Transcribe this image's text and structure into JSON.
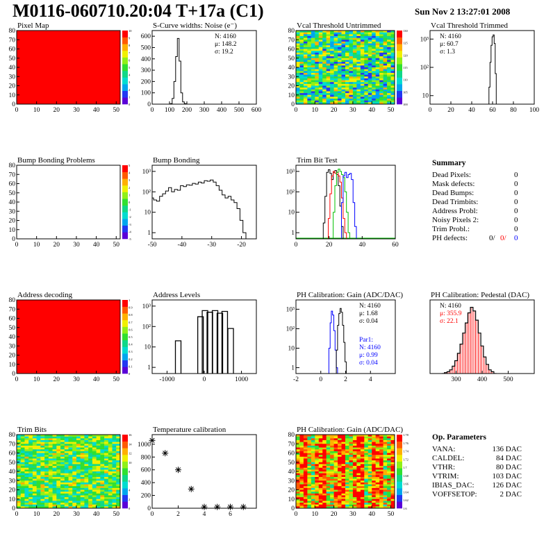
{
  "header": {
    "title": "M0116-060710.20:04 T+17a (C1)",
    "date": "Sun Nov  2 13:27:01 2008"
  },
  "palette": {
    "heat": [
      "#5a00d8",
      "#2238f2",
      "#00a6ee",
      "#00dcd0",
      "#10d888",
      "#30e030",
      "#90f018",
      "#f0f000",
      "#ffb000",
      "#ff5a00",
      "#ff0000"
    ],
    "hist": "#000000",
    "red": "#ff0000",
    "green": "#00c000",
    "blue": "#0000ff"
  },
  "chart_data": [
    {
      "id": "pixel-map",
      "type": "heatmap",
      "title": "Pixel Map",
      "xlim": [
        0,
        52
      ],
      "ylim": [
        0,
        80
      ],
      "xticks": [
        0,
        10,
        20,
        30,
        40,
        50
      ],
      "yticks": [
        0,
        10,
        20,
        30,
        40,
        50,
        60,
        70,
        80
      ],
      "fill": "uniform",
      "value": 10,
      "zlim": [
        0,
        10
      ],
      "zticks": [
        "0",
        "1",
        "2",
        "3",
        "4",
        "5",
        "6",
        "7",
        "8",
        "9",
        "10"
      ]
    },
    {
      "id": "s-curve",
      "type": "bar",
      "title": "S-Curve widths: Noise (e⁻)",
      "xlim": [
        0,
        600
      ],
      "ylim": [
        0,
        650
      ],
      "xticks": [
        0,
        100,
        200,
        300,
        400,
        500,
        600
      ],
      "yticks": [
        0,
        100,
        200,
        300,
        400,
        500,
        600
      ],
      "x": [
        100,
        110,
        120,
        130,
        140,
        150,
        160,
        170,
        180,
        190,
        200
      ],
      "values": [
        0,
        5,
        50,
        200,
        420,
        580,
        380,
        100,
        20,
        5,
        0
      ],
      "stats": [
        "N: 4160",
        "μ: 148.2",
        "σ: 19.2"
      ]
    },
    {
      "id": "vcal-untrimmed",
      "type": "heatmap",
      "title": "Vcal Threshold Untrimmed",
      "xlim": [
        0,
        52
      ],
      "ylim": [
        0,
        80
      ],
      "xticks": [
        0,
        10,
        20,
        30,
        40,
        50
      ],
      "yticks": [
        0,
        10,
        20,
        30,
        40,
        50,
        60,
        70,
        80
      ],
      "fill": "noise",
      "value": 0.45,
      "spread": 0.35,
      "zlim": [
        100,
        130
      ],
      "zticks": [
        "100",
        "105",
        "110",
        "115",
        "120",
        "125",
        "130"
      ]
    },
    {
      "id": "vcal-trimmed",
      "type": "bar",
      "title": "Vcal Threshold Trimmed",
      "xlim": [
        0,
        100
      ],
      "ylim": [
        5,
        2000
      ],
      "yscale": "log",
      "xticks": [
        0,
        20,
        40,
        60,
        80,
        100
      ],
      "ytick_labels": [
        {
          "v": 10,
          "t": "10"
        },
        {
          "v": 100,
          "t": "10²"
        },
        {
          "v": 1000,
          "t": "10³"
        }
      ],
      "x": [
        56,
        57,
        58,
        59,
        60,
        61,
        62,
        63,
        64,
        65
      ],
      "values": [
        5,
        20,
        150,
        600,
        1200,
        1400,
        700,
        60,
        5,
        5
      ],
      "stats": [
        "N: 4160",
        "μ: 60.7",
        "σ:  1.3"
      ]
    },
    {
      "id": "bump-problems",
      "type": "heatmap",
      "title": "Bump Bonding Problems",
      "xlim": [
        0,
        52
      ],
      "ylim": [
        0,
        80
      ],
      "xticks": [
        0,
        10,
        20,
        30,
        40,
        50
      ],
      "yticks": [
        0,
        10,
        20,
        30,
        40,
        50,
        60,
        70,
        80
      ],
      "fill": "empty",
      "zlim": [
        -5,
        5
      ],
      "zticks": [
        "-5",
        "-4",
        "-3",
        "-2",
        "-1",
        "0",
        "1",
        "2",
        "3",
        "4",
        "5"
      ]
    },
    {
      "id": "bump-bonding",
      "type": "bar",
      "title": "Bump Bonding",
      "xlim": [
        -50,
        -15
      ],
      "ylim": [
        0.5,
        2000
      ],
      "yscale": "log",
      "xticks": [
        -50,
        -40,
        -30,
        -20
      ],
      "ytick_labels": [
        {
          "v": 1,
          "t": "1"
        },
        {
          "v": 10,
          "t": "10"
        },
        {
          "v": 100,
          "t": "10²"
        },
        {
          "v": 1000,
          "t": "10³"
        }
      ],
      "x": [
        -50,
        -49,
        -48,
        -47,
        -46,
        -45,
        -44,
        -43,
        -42,
        -41,
        -40,
        -39,
        -38,
        -37,
        -36,
        -35,
        -34,
        -33,
        -32,
        -31,
        -30,
        -29,
        -28,
        -27,
        -26,
        -25,
        -24,
        -23,
        -22,
        -21,
        -20,
        -19,
        -18
      ],
      "values": [
        50,
        40,
        35,
        60,
        80,
        110,
        160,
        100,
        130,
        120,
        200,
        180,
        220,
        210,
        260,
        240,
        300,
        270,
        350,
        330,
        380,
        300,
        200,
        120,
        70,
        50,
        60,
        40,
        30,
        15,
        4,
        1,
        0.5
      ],
      "width": 1
    },
    {
      "id": "trim-bit-test",
      "type": "line",
      "title": "Trim Bit Test",
      "xlim": [
        0,
        60
      ],
      "ylim": [
        0.5,
        2000
      ],
      "yscale": "log",
      "xticks": [
        0,
        20,
        40,
        60
      ],
      "ytick_labels": [
        {
          "v": 1,
          "t": "1"
        },
        {
          "v": 10,
          "t": "10"
        },
        {
          "v": 100,
          "t": "10²"
        },
        {
          "v": 1000,
          "t": "10³"
        }
      ],
      "series": [
        {
          "color": "#000000",
          "x": [
            16,
            17,
            18,
            19,
            20,
            21,
            22,
            23,
            24,
            25,
            26,
            27,
            28,
            29
          ],
          "values": [
            0.5,
            3,
            60,
            900,
            1200,
            800,
            400,
            900,
            1100,
            700,
            200,
            20,
            2,
            0.5
          ]
        },
        {
          "color": "#ff0000",
          "x": [
            19,
            20,
            21,
            22,
            23,
            24,
            25,
            26,
            27,
            28,
            29,
            30,
            31
          ],
          "values": [
            0.5,
            5,
            80,
            600,
            1000,
            800,
            900,
            600,
            300,
            50,
            5,
            1,
            0.5
          ]
        },
        {
          "color": "#00c000",
          "x": [
            22,
            23,
            24,
            25,
            26,
            27,
            28,
            29,
            30,
            31,
            32,
            33
          ],
          "values": [
            0.5,
            10,
            200,
            900,
            1300,
            1000,
            700,
            500,
            100,
            10,
            1,
            0.5
          ]
        },
        {
          "color": "#0000ff",
          "x": [
            27,
            28,
            29,
            30,
            31,
            32,
            33,
            34,
            35,
            36,
            37
          ],
          "values": [
            0.5,
            30,
            600,
            900,
            500,
            700,
            800,
            400,
            30,
            2,
            0.5
          ]
        }
      ]
    },
    {
      "id": "address-decoding",
      "type": "heatmap",
      "title": "Address decoding",
      "xlim": [
        0,
        52
      ],
      "ylim": [
        0,
        80
      ],
      "xticks": [
        0,
        10,
        20,
        30,
        40,
        50
      ],
      "yticks": [
        0,
        10,
        20,
        30,
        40,
        50,
        60,
        70,
        80
      ],
      "fill": "uniform",
      "value": 1.0,
      "zlim": [
        0,
        1
      ],
      "zticks": [
        "0",
        "0.1",
        "0.2",
        "0.3",
        "0.4",
        "0.5",
        "0.6",
        "0.7",
        "0.8",
        "0.9",
        "1"
      ]
    },
    {
      "id": "address-levels",
      "type": "bar",
      "title": "Address Levels",
      "xlim": [
        -1400,
        1400
      ],
      "ylim": [
        0.5,
        2000
      ],
      "yscale": "log",
      "xticks": [
        -1000,
        0,
        1000
      ],
      "ytick_labels": [
        {
          "v": 1,
          "t": "1"
        },
        {
          "v": 10,
          "t": "10"
        },
        {
          "v": 100,
          "t": "10²"
        },
        {
          "v": 1000,
          "t": "10³"
        }
      ],
      "x": [
        -700,
        -100,
        20,
        150,
        290,
        420,
        550,
        710
      ],
      "values": [
        20,
        300,
        600,
        500,
        600,
        450,
        550,
        80
      ],
      "width": 40,
      "spike": true
    },
    {
      "id": "ph-gain",
      "type": "line",
      "title": "PH Calibration: Gain (ADC/DAC)",
      "xlim": [
        -2,
        6
      ],
      "ylim": [
        0.5,
        3000
      ],
      "yscale": "log",
      "xticks": [
        -2,
        0,
        2,
        4
      ],
      "ytick_labels": [
        {
          "v": 1,
          "t": "1"
        },
        {
          "v": 10,
          "t": "10"
        },
        {
          "v": 100,
          "t": "10²"
        },
        {
          "v": 1000,
          "t": "10³"
        }
      ],
      "series": [
        {
          "color": "#0000ff",
          "x": [
            0.6,
            0.7,
            0.8,
            0.9,
            1.0,
            1.1,
            1.2,
            1.3,
            1.4
          ],
          "values": [
            0.5,
            10,
            200,
            800,
            500,
            80,
            8,
            1,
            0.5
          ]
        },
        {
          "color": "#000000",
          "x": [
            1.2,
            1.3,
            1.4,
            1.5,
            1.6,
            1.7,
            1.8,
            1.9,
            2.0,
            2.1
          ],
          "values": [
            0.5,
            8,
            150,
            600,
            1100,
            700,
            150,
            20,
            2,
            0.5
          ]
        }
      ],
      "stats": [
        "N: 4160",
        "μ: 1.68",
        "σ: 0.04"
      ],
      "stats2_title": "Par1:",
      "stats2": [
        "N: 4160",
        "μ: 0.99",
        "σ: 0.04"
      ]
    },
    {
      "id": "ph-pedestal",
      "type": "bar",
      "title": "PH Calibration: Pedestal (DAC)",
      "xlim": [
        200,
        600
      ],
      "ylim": [
        0,
        80
      ],
      "xticks": [
        300,
        400,
        500
      ],
      "x": [
        250,
        260,
        270,
        280,
        290,
        300,
        310,
        320,
        330,
        340,
        350,
        360,
        370,
        380,
        390,
        400,
        410,
        420,
        430,
        440,
        450
      ],
      "values": [
        0,
        1,
        2,
        4,
        8,
        14,
        22,
        32,
        44,
        55,
        66,
        72,
        68,
        58,
        44,
        30,
        18,
        10,
        4,
        2,
        0
      ],
      "stats": [
        "N: 4160",
        "μ: 355.9",
        "σ: 22.1"
      ]
    },
    {
      "id": "trim-bits",
      "type": "heatmap",
      "title": "Trim Bits",
      "xlim": [
        0,
        52
      ],
      "ylim": [
        0,
        80
      ],
      "xticks": [
        0,
        10,
        20,
        30,
        40,
        50
      ],
      "yticks": [
        0,
        10,
        20,
        30,
        40,
        50,
        60,
        70,
        80
      ],
      "fill": "noise",
      "value": 0.52,
      "spread": 0.25,
      "zlim": [
        0,
        16
      ],
      "zticks": [
        "0",
        "2",
        "4",
        "6",
        "8",
        "10",
        "12",
        "14",
        "16"
      ]
    },
    {
      "id": "temperature-calibration",
      "type": "scatter",
      "title": "Temperature calibration",
      "xlim": [
        0,
        8
      ],
      "ylim": [
        0,
        1150
      ],
      "xticks": [
        0,
        2,
        4,
        6
      ],
      "yticks": [
        0,
        200,
        400,
        600,
        800,
        1000
      ],
      "x": [
        0,
        1,
        2,
        3,
        4,
        5,
        6,
        7
      ],
      "values": [
        1060,
        860,
        600,
        300,
        20,
        20,
        20,
        20
      ]
    },
    {
      "id": "ph-gain-map",
      "type": "heatmap",
      "title": "PH Calibration: Gain (ADC/DAC)",
      "xlim": [
        0,
        52
      ],
      "ylim": [
        0,
        80
      ],
      "xticks": [
        0,
        10,
        20,
        30,
        40,
        50
      ],
      "yticks": [
        0,
        10,
        20,
        30,
        40,
        50,
        60,
        70,
        80
      ],
      "fill": "stripes",
      "value": 0.75,
      "spread": 0.3,
      "zlim": [
        1.6,
        1.78
      ],
      "zticks": [
        "1.6",
        "1.62",
        "1.64",
        "1.66",
        "1.68",
        "1.7",
        "1.72",
        "1.74",
        "1.76",
        "1.78"
      ]
    }
  ],
  "summary": {
    "title": "Summary",
    "rows": [
      {
        "label": "Dead Pixels:",
        "value": "0"
      },
      {
        "label": "Mask defects:",
        "value": "0"
      },
      {
        "label": "Dead Bumps:",
        "value": "0"
      },
      {
        "label": "Dead Trimbits:",
        "value": "0"
      },
      {
        "label": "Address Probl:",
        "value": "0"
      },
      {
        "label": "Noisy Pixels 2:",
        "value": "0"
      },
      {
        "label": "Trim Probl.:",
        "value": "0"
      }
    ],
    "ph_label": "PH defects:",
    "ph_values": [
      "0/",
      "0/",
      "0"
    ]
  },
  "op_parameters": {
    "title": "Op. Parameters",
    "rows": [
      {
        "label": "VANA:",
        "value": "136 DAC"
      },
      {
        "label": "CALDEL:",
        "value": "84 DAC"
      },
      {
        "label": "VTHR:",
        "value": "80 DAC"
      },
      {
        "label": "VTRIM:",
        "value": "103 DAC"
      },
      {
        "label": "IBIAS_DAC:",
        "value": "126 DAC"
      },
      {
        "label": "VOFFSETOP:",
        "value": "2 DAC"
      }
    ]
  }
}
